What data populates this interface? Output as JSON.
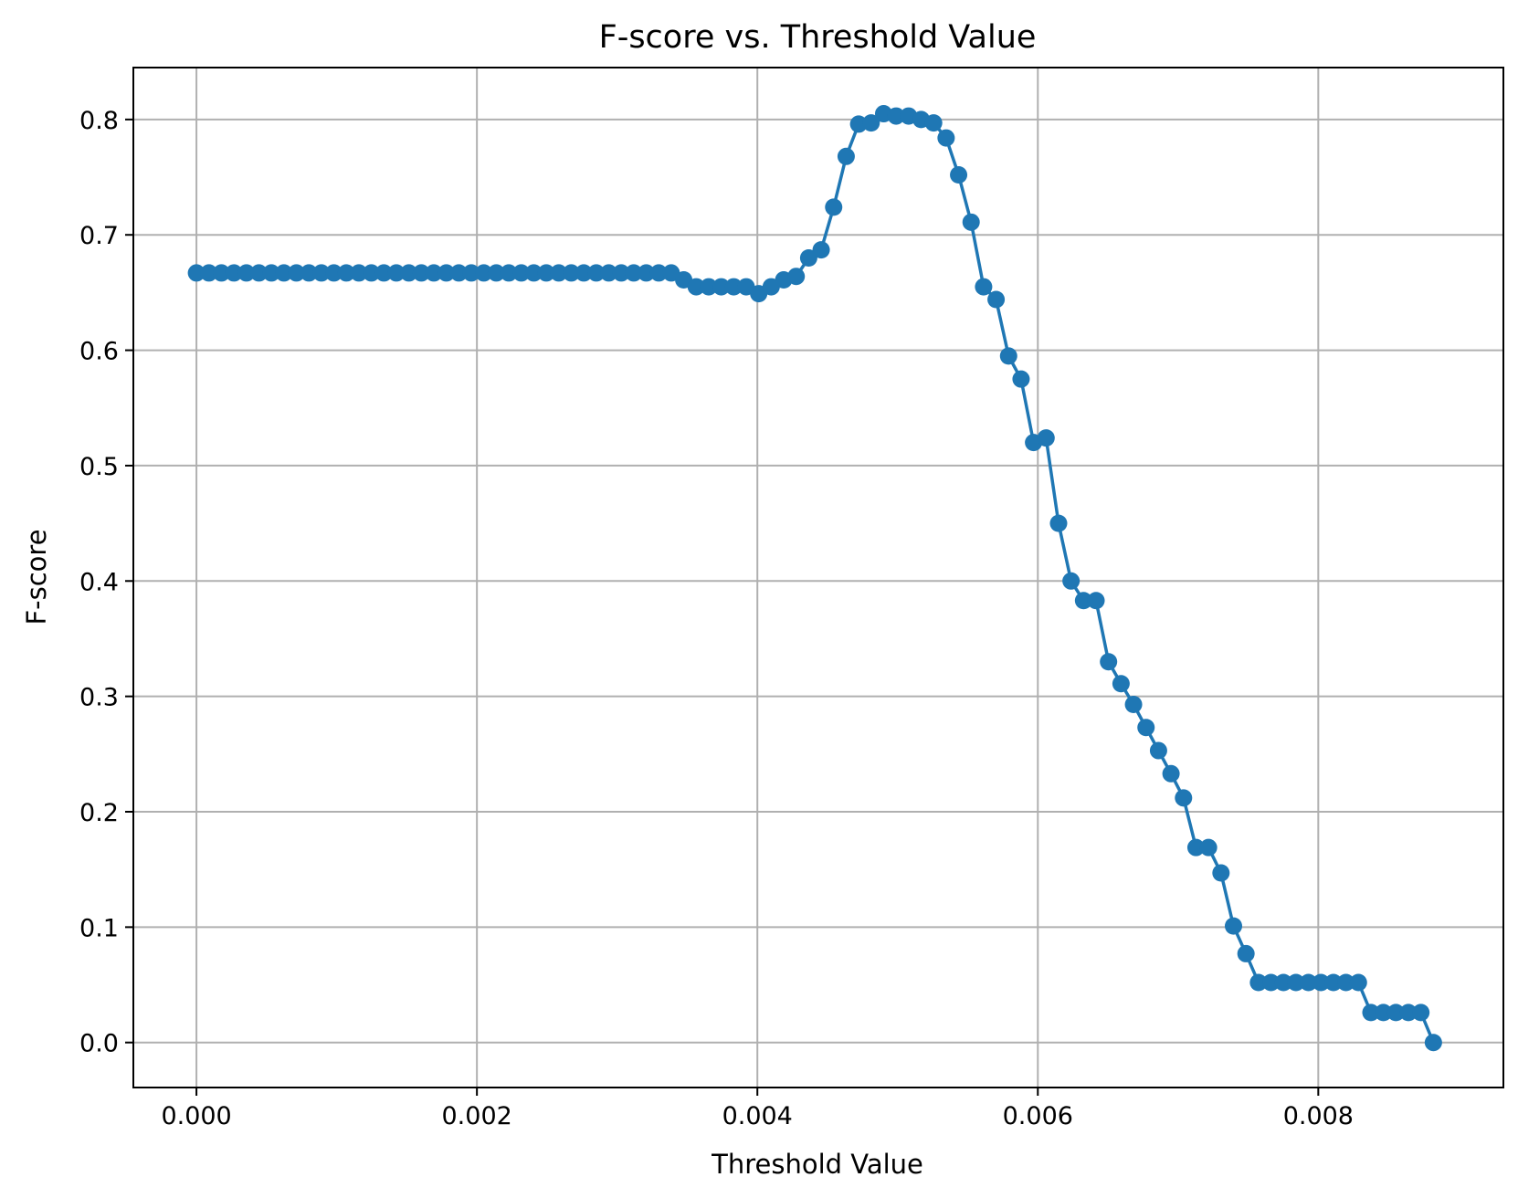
{
  "chart_data": {
    "type": "line",
    "title": "F-score vs. Threshold Value",
    "xlabel": "Threshold Value",
    "ylabel": "F-score",
    "xlim": [
      -0.00045,
      0.00932
    ],
    "ylim": [
      -0.039,
      0.845
    ],
    "xticks": [
      {
        "value": 0.0,
        "label": "0.000"
      },
      {
        "value": 0.002,
        "label": "0.002"
      },
      {
        "value": 0.004,
        "label": "0.004"
      },
      {
        "value": 0.006,
        "label": "0.006"
      },
      {
        "value": 0.008,
        "label": "0.008"
      }
    ],
    "yticks": [
      {
        "value": 0.0,
        "label": "0.0"
      },
      {
        "value": 0.1,
        "label": "0.1"
      },
      {
        "value": 0.2,
        "label": "0.2"
      },
      {
        "value": 0.3,
        "label": "0.3"
      },
      {
        "value": 0.4,
        "label": "0.4"
      },
      {
        "value": 0.5,
        "label": "0.5"
      },
      {
        "value": 0.6,
        "label": "0.6"
      },
      {
        "value": 0.7,
        "label": "0.7"
      },
      {
        "value": 0.8,
        "label": "0.8"
      }
    ],
    "grid": true,
    "legend": null,
    "series": [
      {
        "color": "#1f77b4",
        "marker": "circle",
        "x": [
          0.0,
          8.91e-05,
          0.0001782,
          0.0002673,
          0.0003564,
          0.0004455,
          0.0005346,
          0.0006237,
          0.0007128,
          0.0008019,
          0.000891,
          0.0009801,
          0.0010692,
          0.0011583,
          0.0012474,
          0.0013365,
          0.0014256,
          0.0015147,
          0.0016038,
          0.0016929,
          0.001782,
          0.0018711,
          0.0019602,
          0.0020493,
          0.0021384,
          0.0022275,
          0.0023166,
          0.0024057,
          0.0024948,
          0.0025839,
          0.002673,
          0.0027621,
          0.0028512,
          0.0029403,
          0.0030294,
          0.0031185,
          0.0032076,
          0.0032967,
          0.0033858,
          0.0034749,
          0.003564,
          0.0036531,
          0.0037422,
          0.0038313,
          0.0039204,
          0.0040095,
          0.0040986,
          0.0041877,
          0.0042768,
          0.0043659,
          0.004455,
          0.0045441,
          0.0046332,
          0.0047223,
          0.0048114,
          0.0049005,
          0.0049896,
          0.0050787,
          0.0051678,
          0.0052569,
          0.005346,
          0.0054351,
          0.0055242,
          0.0056133,
          0.0057024,
          0.0057915,
          0.0058806,
          0.0059697,
          0.0060588,
          0.0061479,
          0.006237,
          0.0063261,
          0.0064152,
          0.0065043,
          0.0065934,
          0.0066825,
          0.0067716,
          0.0068607,
          0.0069498,
          0.0070389,
          0.007128,
          0.0072171,
          0.0073062,
          0.0073953,
          0.0074844,
          0.0075735,
          0.0076626,
          0.0077517,
          0.0078408,
          0.0079299,
          0.008019,
          0.0081081,
          0.0081972,
          0.0082863,
          0.0083754,
          0.0084645,
          0.0085536,
          0.0086427,
          0.0087318,
          0.0088209
        ],
        "y": [
          0.667,
          0.667,
          0.667,
          0.667,
          0.667,
          0.667,
          0.667,
          0.667,
          0.667,
          0.667,
          0.667,
          0.667,
          0.667,
          0.667,
          0.667,
          0.667,
          0.667,
          0.667,
          0.667,
          0.667,
          0.667,
          0.667,
          0.667,
          0.667,
          0.667,
          0.667,
          0.667,
          0.667,
          0.667,
          0.667,
          0.667,
          0.667,
          0.667,
          0.667,
          0.667,
          0.667,
          0.667,
          0.667,
          0.667,
          0.661,
          0.655,
          0.655,
          0.655,
          0.655,
          0.655,
          0.649,
          0.655,
          0.661,
          0.664,
          0.68,
          0.687,
          0.724,
          0.768,
          0.796,
          0.797,
          0.805,
          0.803,
          0.803,
          0.8,
          0.797,
          0.784,
          0.752,
          0.711,
          0.655,
          0.644,
          0.595,
          0.575,
          0.52,
          0.524,
          0.45,
          0.4,
          0.383,
          0.383,
          0.33,
          0.311,
          0.293,
          0.273,
          0.253,
          0.233,
          0.212,
          0.169,
          0.169,
          0.147,
          0.101,
          0.077,
          0.052,
          0.052,
          0.052,
          0.052,
          0.052,
          0.052,
          0.052,
          0.052,
          0.052,
          0.026,
          0.026,
          0.026,
          0.026,
          0.026,
          0.0
        ]
      }
    ]
  }
}
